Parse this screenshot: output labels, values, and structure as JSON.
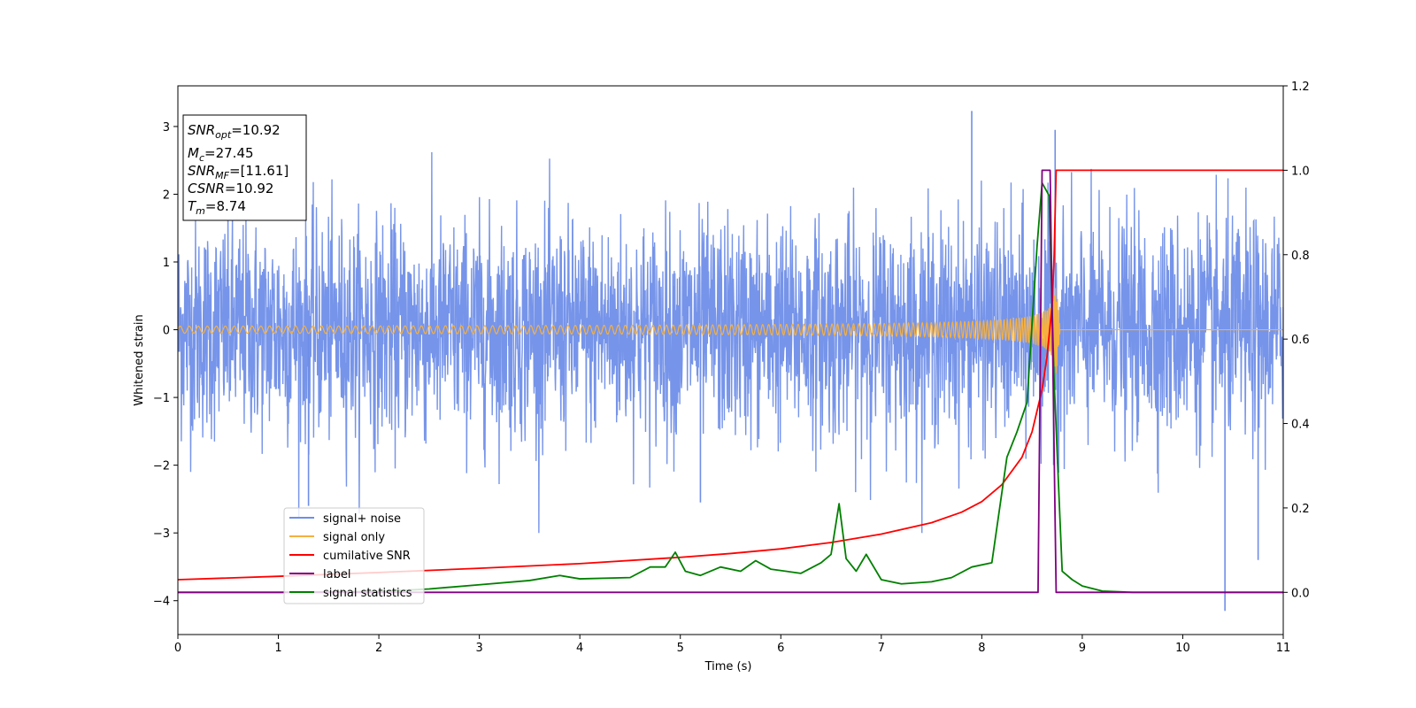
{
  "chart_data": {
    "type": "line",
    "xlabel": "Time (s)",
    "ylabel": "Whitened strain",
    "xlim": [
      0,
      11
    ],
    "ylim": [
      -4.5,
      3.6
    ],
    "y2lim": [
      -0.1,
      1.2
    ],
    "x_ticks": [
      0,
      1,
      2,
      3,
      4,
      5,
      6,
      7,
      8,
      9,
      10,
      11
    ],
    "y_ticks": [
      3,
      2,
      1,
      0,
      -1,
      -2,
      -3,
      -4
    ],
    "y_tick_labels": [
      "3",
      "2",
      "1",
      "0",
      "−1",
      "−2",
      "−3",
      "−4"
    ],
    "y2_ticks": [
      1.2,
      1.0,
      0.8,
      0.6,
      0.4,
      0.2,
      0.0
    ],
    "y2_tick_labels": [
      "1.2",
      "1.0",
      "0.8",
      "0.6",
      "0.4",
      "0.2",
      "0.0"
    ],
    "grid": false,
    "legend_placement": "lower-left",
    "info_box": {
      "snr_opt": {
        "base": "SNR",
        "sub": "opt",
        "value": "=10.92"
      },
      "mc": {
        "base": "M",
        "sub": "c",
        "value": "=27.45"
      },
      "snr_mf": {
        "base": "SNR",
        "sub": "MF",
        "value": "=[11.61]"
      },
      "csnr": {
        "base": "CSNR",
        "sub": "",
        "value": "=10.92"
      },
      "tm": {
        "base": "T",
        "sub": "m",
        "value": "=8.74"
      }
    },
    "series": [
      {
        "name": "signal+ noise",
        "color": "#6f8ee8",
        "axis": "left",
        "description_stats": {
          "std": 0.8,
          "min": -4.15,
          "max": 3.23,
          "extreme_points": [
            [
              7.9,
              3.23
            ],
            [
              10.42,
              -4.15
            ],
            [
              8.73,
              2.95
            ],
            [
              10.75,
              -3.4
            ],
            [
              1.3,
              -2.6
            ],
            [
              5.2,
              -2.55
            ]
          ]
        }
      },
      {
        "name": "signal only",
        "color": "#f5b041",
        "axis": "left",
        "chirp": {
          "start_amp": 0.02,
          "peak_amp": 0.7,
          "merger_time": 8.74,
          "end_time": 8.78
        }
      },
      {
        "name": "cumilative SNR",
        "color": "#ff0000",
        "axis": "right",
        "points": [
          [
            0,
            0.03
          ],
          [
            1,
            0.038
          ],
          [
            2,
            0.047
          ],
          [
            3,
            0.057
          ],
          [
            4,
            0.068
          ],
          [
            5,
            0.083
          ],
          [
            5.5,
            0.092
          ],
          [
            6,
            0.103
          ],
          [
            6.5,
            0.118
          ],
          [
            7,
            0.138
          ],
          [
            7.5,
            0.165
          ],
          [
            7.8,
            0.19
          ],
          [
            8.0,
            0.215
          ],
          [
            8.2,
            0.255
          ],
          [
            8.4,
            0.32
          ],
          [
            8.5,
            0.38
          ],
          [
            8.6,
            0.48
          ],
          [
            8.65,
            0.56
          ],
          [
            8.7,
            0.68
          ],
          [
            8.72,
            0.8
          ],
          [
            8.74,
            1.0
          ],
          [
            11,
            1.0
          ]
        ]
      },
      {
        "name": "label",
        "color": "#800080",
        "axis": "right",
        "points": [
          [
            0,
            0.0
          ],
          [
            8.56,
            0.0
          ],
          [
            8.6,
            1.0
          ],
          [
            8.68,
            1.0
          ],
          [
            8.74,
            0.0
          ],
          [
            11,
            0.0
          ]
        ]
      },
      {
        "name": "signal statistics",
        "color": "#008000",
        "axis": "right",
        "points": [
          [
            0,
            0.0
          ],
          [
            1,
            0.0
          ],
          [
            2,
            0.002
          ],
          [
            2.5,
            0.008
          ],
          [
            3,
            0.018
          ],
          [
            3.5,
            0.028
          ],
          [
            3.8,
            0.04
          ],
          [
            4,
            0.032
          ],
          [
            4.5,
            0.035
          ],
          [
            4.7,
            0.06
          ],
          [
            4.85,
            0.06
          ],
          [
            4.95,
            0.095
          ],
          [
            5.05,
            0.05
          ],
          [
            5.2,
            0.04
          ],
          [
            5.4,
            0.06
          ],
          [
            5.6,
            0.05
          ],
          [
            5.75,
            0.075
          ],
          [
            5.9,
            0.055
          ],
          [
            6.2,
            0.045
          ],
          [
            6.4,
            0.07
          ],
          [
            6.5,
            0.09
          ],
          [
            6.58,
            0.21
          ],
          [
            6.65,
            0.08
          ],
          [
            6.75,
            0.05
          ],
          [
            6.85,
            0.09
          ],
          [
            7.0,
            0.03
          ],
          [
            7.2,
            0.02
          ],
          [
            7.5,
            0.025
          ],
          [
            7.7,
            0.035
          ],
          [
            7.9,
            0.06
          ],
          [
            8.1,
            0.07
          ],
          [
            8.25,
            0.32
          ],
          [
            8.35,
            0.38
          ],
          [
            8.45,
            0.45
          ],
          [
            8.55,
            0.82
          ],
          [
            8.6,
            0.97
          ],
          [
            8.67,
            0.94
          ],
          [
            8.72,
            0.5
          ],
          [
            8.8,
            0.05
          ],
          [
            8.9,
            0.03
          ],
          [
            9.0,
            0.015
          ],
          [
            9.2,
            0.003
          ],
          [
            9.5,
            0.0
          ],
          [
            11,
            0.0
          ]
        ]
      }
    ]
  }
}
